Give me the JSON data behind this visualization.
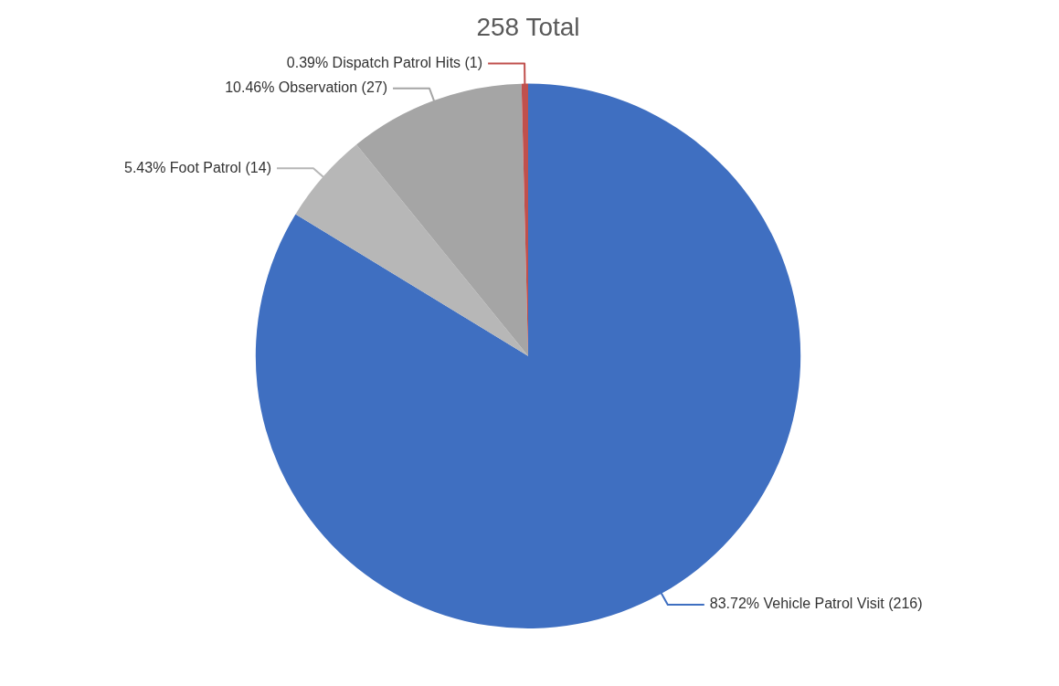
{
  "chart_data": {
    "type": "pie",
    "title": "258 Total",
    "categories": [
      "83.72% Vehicle Patrol Visit",
      "5.43% Foot Patrol",
      "10.46% Observation",
      "0.39% Dispatch Patrol Hits"
    ],
    "values": [
      216,
      14,
      27,
      1
    ],
    "value_labels": [
      "(216)",
      "(14)",
      "(27)",
      "(1)"
    ],
    "colors": [
      "#3f6fc1",
      "#b7b7b7",
      "#a5a5a5",
      "#c0504d"
    ],
    "legend": false
  }
}
